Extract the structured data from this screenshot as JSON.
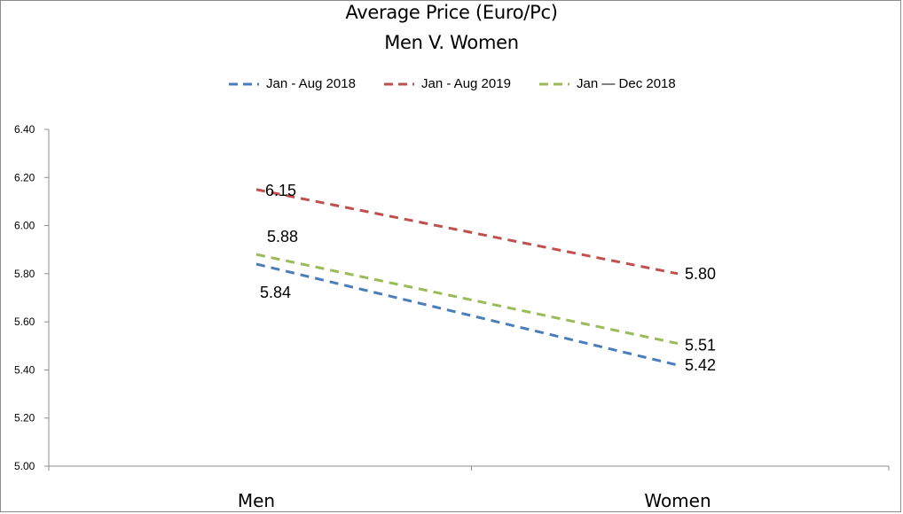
{
  "chart_data": {
    "type": "line",
    "title": "Average Price (Euro/Pc)",
    "subtitle": "Men V. Women",
    "categories": [
      "Men",
      "Women"
    ],
    "series": [
      {
        "name": "Jan - Aug 2018",
        "values": [
          5.84,
          5.42
        ],
        "color": "#4a7ebb",
        "labels": [
          "5.84",
          "5.42"
        ]
      },
      {
        "name": "Jan - Aug 2019",
        "values": [
          6.15,
          5.8
        ],
        "color": "#c0504d",
        "labels": [
          "6.15",
          "5.80"
        ]
      },
      {
        "name": "Jan — Dec 2018",
        "values": [
          5.88,
          5.51
        ],
        "color": "#9bbb59",
        "labels": [
          "5.88",
          "5.51"
        ]
      }
    ],
    "ylim": [
      5.0,
      6.4
    ],
    "yticks": [
      "5.00",
      "5.20",
      "5.40",
      "5.60",
      "5.80",
      "6.00",
      "6.20",
      "6.40"
    ],
    "xlabel": "",
    "ylabel": "",
    "legend_position": "top",
    "grid": false
  }
}
